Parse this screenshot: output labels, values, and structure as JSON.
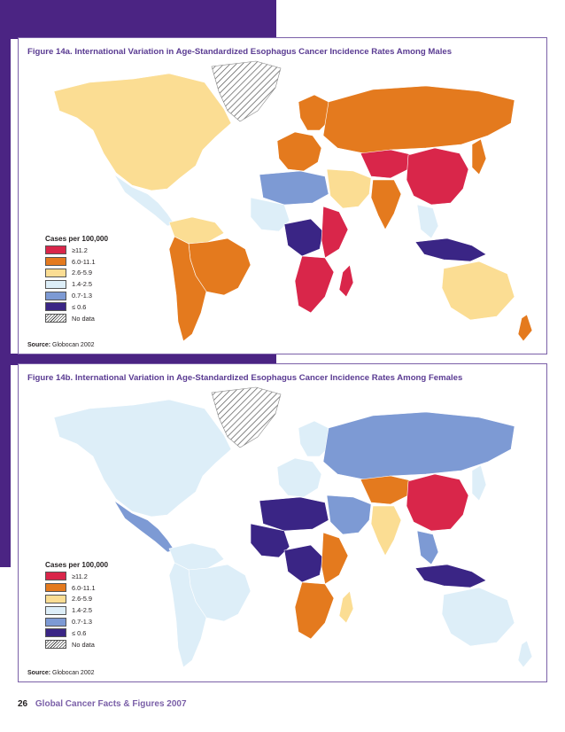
{
  "colors": {
    "brand_purple": "#4b2483",
    "title_purple": "#5a3b92",
    "levels": {
      "ge_11_2": "#d9264a",
      "r6_0_11_1": "#e47a1e",
      "r2_6_5_9": "#fbdd93",
      "r1_4_2_5": "#ddeef8",
      "r0_7_1_3": "#7d9ad4",
      "le_0_6": "#3a2585",
      "no_data": "#ffffff"
    }
  },
  "figure_a": {
    "title": "Figure 14a. International Variation in Age-Standardized Esophagus Cancer Incidence Rates Among Males",
    "legend_heading": "Cases per 100,000",
    "legend": [
      {
        "label": "≥11.2",
        "color": "#d9264a"
      },
      {
        "label": "6.0-11.1",
        "color": "#e47a1e"
      },
      {
        "label": "2.6-5.9",
        "color": "#fbdd93"
      },
      {
        "label": "1.4-2.5",
        "color": "#ddeef8"
      },
      {
        "label": "0.7-1.3",
        "color": "#7d9ad4"
      },
      {
        "label": "≤ 0.6",
        "color": "#3a2585"
      },
      {
        "label": "No data",
        "color": "hatch"
      }
    ],
    "source_label": "Source:",
    "source_text": "Globocan 2002",
    "regions": {
      "greenland": "no_data",
      "north_america": "r2_6_5_9",
      "mexico_central_america": "r1_4_2_5",
      "south_america_north": "r2_6_5_9",
      "brazil": "r6_0_11_1",
      "south_america_south": "r6_0_11_1",
      "western_europe": "r6_0_11_1",
      "scandinavia": "r6_0_11_1",
      "russia": "r6_0_11_1",
      "central_asia": "ge_11_2",
      "china": "ge_11_2",
      "india": "r6_0_11_1",
      "middle_east": "r2_6_5_9",
      "north_africa": "r0_7_1_3",
      "west_africa": "r1_4_2_5",
      "central_africa": "le_0_6",
      "east_africa": "ge_11_2",
      "southern_africa": "ge_11_2",
      "madagascar": "ge_11_2",
      "southeast_asia": "r1_4_2_5",
      "indonesia": "le_0_6",
      "japan": "r6_0_11_1",
      "australia": "r2_6_5_9",
      "new_zealand": "r6_0_11_1"
    }
  },
  "figure_b": {
    "title": "Figure 14b. International Variation in Age-Standardized Esophagus Cancer Incidence Rates Among Females",
    "legend_heading": "Cases per 100,000",
    "legend": [
      {
        "label": "≥11.2",
        "color": "#d9264a"
      },
      {
        "label": "6.0-11.1",
        "color": "#e47a1e"
      },
      {
        "label": "2.6-5.9",
        "color": "#fbdd93"
      },
      {
        "label": "1.4-2.5",
        "color": "#ddeef8"
      },
      {
        "label": "0.7-1.3",
        "color": "#7d9ad4"
      },
      {
        "label": "≤ 0.6",
        "color": "#3a2585"
      },
      {
        "label": "No data",
        "color": "hatch"
      }
    ],
    "source_label": "Source:",
    "source_text": "Globocan 2002",
    "regions": {
      "greenland": "no_data",
      "north_america": "r1_4_2_5",
      "mexico_central_america": "r0_7_1_3",
      "south_america_north": "r1_4_2_5",
      "brazil": "r1_4_2_5",
      "south_america_south": "r1_4_2_5",
      "western_europe": "r1_4_2_5",
      "scandinavia": "r1_4_2_5",
      "russia": "r0_7_1_3",
      "central_asia": "r6_0_11_1",
      "china": "ge_11_2",
      "india": "r2_6_5_9",
      "middle_east": "r0_7_1_3",
      "north_africa": "le_0_6",
      "west_africa": "le_0_6",
      "central_africa": "le_0_6",
      "east_africa": "r6_0_11_1",
      "southern_africa": "r6_0_11_1",
      "madagascar": "r2_6_5_9",
      "southeast_asia": "r0_7_1_3",
      "indonesia": "le_0_6",
      "japan": "r1_4_2_5",
      "australia": "r1_4_2_5",
      "new_zealand": "r1_4_2_5"
    }
  },
  "footer": {
    "page_number": "26",
    "publication": "Global Cancer Facts & Figures 2007"
  }
}
